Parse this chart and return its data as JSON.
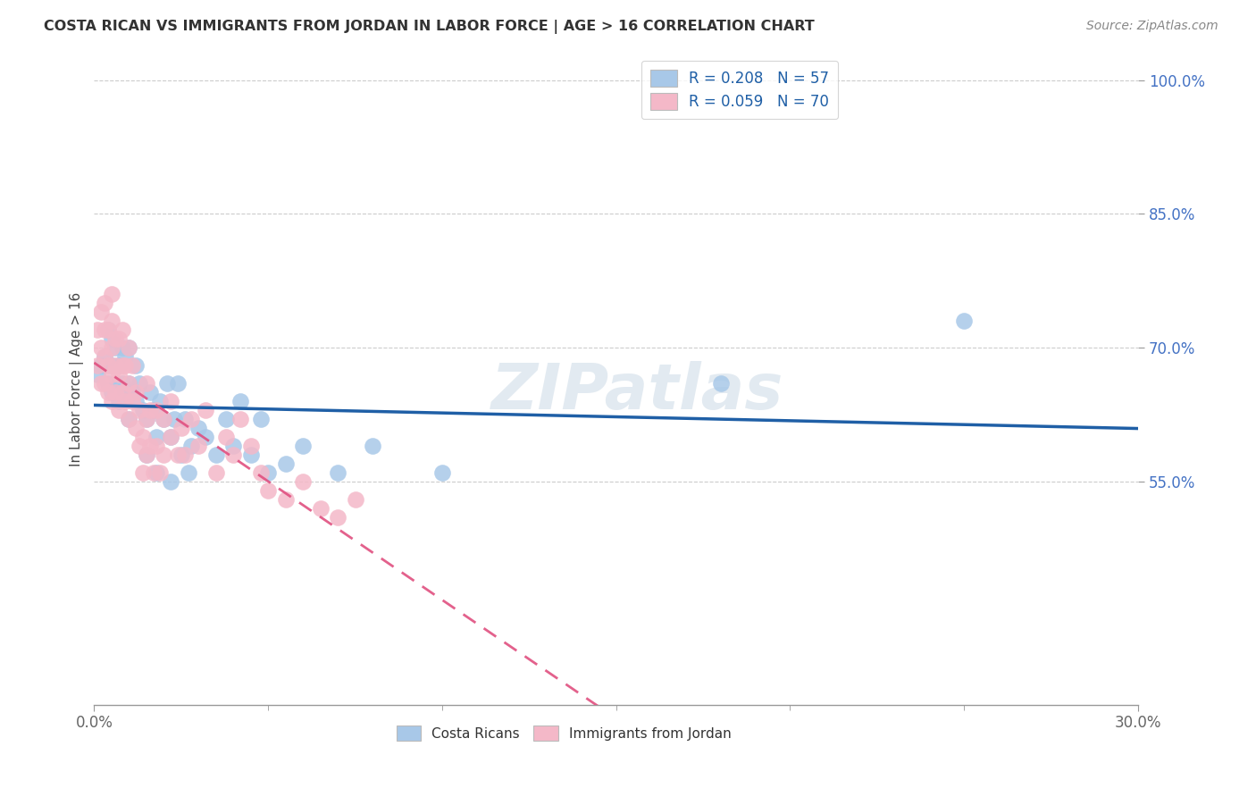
{
  "title": "COSTA RICAN VS IMMIGRANTS FROM JORDAN IN LABOR FORCE | AGE > 16 CORRELATION CHART",
  "source": "Source: ZipAtlas.com",
  "ylabel": "In Labor Force | Age > 16",
  "xlim": [
    0.0,
    0.3
  ],
  "ylim": [
    0.3,
    1.03
  ],
  "yticks": [
    0.55,
    0.7,
    0.85,
    1.0
  ],
  "ytick_labels": [
    "55.0%",
    "70.0%",
    "85.0%",
    "100.0%"
  ],
  "xtick_positions": [
    0.0,
    0.3
  ],
  "xtick_labels": [
    "0.0%",
    "30.0%"
  ],
  "blue_color": "#a8c8e8",
  "pink_color": "#f4b8c8",
  "blue_line_color": "#1f5fa6",
  "pink_line_color": "#e05080",
  "watermark": "ZIPatlas",
  "background_color": "#ffffff",
  "grid_color": "#cccccc",
  "costa_rican_x": [
    0.001,
    0.002,
    0.003,
    0.004,
    0.004,
    0.005,
    0.005,
    0.005,
    0.006,
    0.006,
    0.007,
    0.007,
    0.008,
    0.008,
    0.009,
    0.009,
    0.01,
    0.01,
    0.01,
    0.011,
    0.012,
    0.012,
    0.013,
    0.014,
    0.015,
    0.015,
    0.016,
    0.017,
    0.018,
    0.018,
    0.019,
    0.02,
    0.021,
    0.022,
    0.022,
    0.023,
    0.024,
    0.025,
    0.026,
    0.027,
    0.028,
    0.03,
    0.032,
    0.035,
    0.038,
    0.04,
    0.042,
    0.045,
    0.048,
    0.05,
    0.055,
    0.06,
    0.07,
    0.08,
    0.1,
    0.18,
    0.25
  ],
  "costa_rican_y": [
    0.67,
    0.68,
    0.69,
    0.66,
    0.72,
    0.65,
    0.68,
    0.71,
    0.66,
    0.7,
    0.64,
    0.68,
    0.66,
    0.7,
    0.65,
    0.69,
    0.62,
    0.66,
    0.7,
    0.65,
    0.64,
    0.68,
    0.66,
    0.63,
    0.58,
    0.62,
    0.65,
    0.63,
    0.56,
    0.6,
    0.64,
    0.62,
    0.66,
    0.55,
    0.6,
    0.62,
    0.66,
    0.58,
    0.62,
    0.56,
    0.59,
    0.61,
    0.6,
    0.58,
    0.62,
    0.59,
    0.64,
    0.58,
    0.62,
    0.56,
    0.57,
    0.59,
    0.56,
    0.59,
    0.56,
    0.66,
    0.73
  ],
  "jordan_x": [
    0.001,
    0.001,
    0.002,
    0.002,
    0.002,
    0.003,
    0.003,
    0.003,
    0.003,
    0.004,
    0.004,
    0.004,
    0.005,
    0.005,
    0.005,
    0.005,
    0.005,
    0.006,
    0.006,
    0.006,
    0.007,
    0.007,
    0.007,
    0.008,
    0.008,
    0.008,
    0.009,
    0.009,
    0.01,
    0.01,
    0.01,
    0.011,
    0.011,
    0.012,
    0.012,
    0.013,
    0.013,
    0.014,
    0.014,
    0.015,
    0.015,
    0.015,
    0.016,
    0.016,
    0.017,
    0.018,
    0.018,
    0.019,
    0.02,
    0.02,
    0.022,
    0.022,
    0.024,
    0.025,
    0.026,
    0.028,
    0.03,
    0.032,
    0.035,
    0.038,
    0.04,
    0.042,
    0.045,
    0.048,
    0.05,
    0.055,
    0.06,
    0.065,
    0.07,
    0.075
  ],
  "jordan_y": [
    0.68,
    0.72,
    0.66,
    0.7,
    0.74,
    0.66,
    0.69,
    0.72,
    0.75,
    0.65,
    0.68,
    0.72,
    0.64,
    0.67,
    0.7,
    0.73,
    0.76,
    0.65,
    0.68,
    0.71,
    0.63,
    0.67,
    0.71,
    0.65,
    0.68,
    0.72,
    0.64,
    0.68,
    0.62,
    0.66,
    0.7,
    0.64,
    0.68,
    0.61,
    0.65,
    0.59,
    0.63,
    0.56,
    0.6,
    0.58,
    0.62,
    0.66,
    0.59,
    0.63,
    0.56,
    0.59,
    0.63,
    0.56,
    0.58,
    0.62,
    0.6,
    0.64,
    0.58,
    0.61,
    0.58,
    0.62,
    0.59,
    0.63,
    0.56,
    0.6,
    0.58,
    0.62,
    0.59,
    0.56,
    0.54,
    0.53,
    0.55,
    0.52,
    0.51,
    0.53
  ]
}
